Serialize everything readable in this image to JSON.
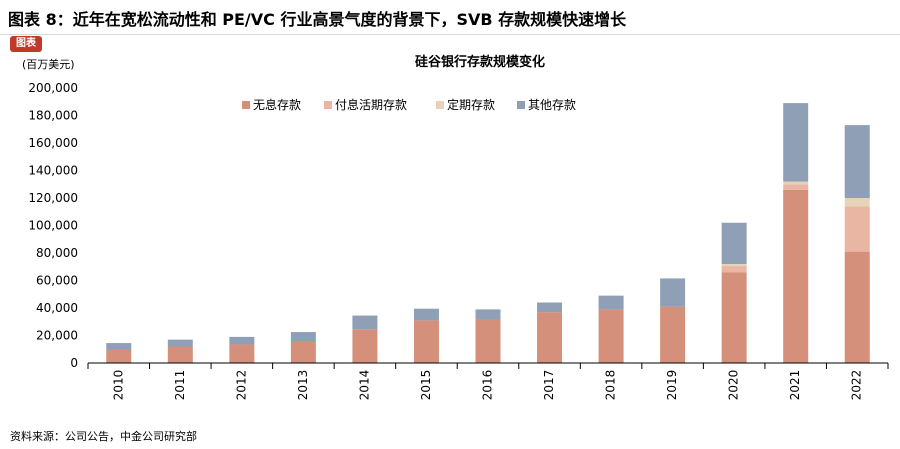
{
  "figure": {
    "title": "图表 8：近年在宽松流动性和 PE/VC 行业高景气度的背景下，SVB 存款规模快速增长",
    "source": "资料来源：公司公告，中金公司研究部"
  },
  "chart_data": {
    "type": "bar",
    "stacked": true,
    "title": "硅谷银行存款规模变化",
    "unit_label": "(百万美元)",
    "xlabel": "",
    "ylabel": "",
    "categories": [
      "2010",
      "2011",
      "2012",
      "2013",
      "2014",
      "2015",
      "2016",
      "2017",
      "2018",
      "2019",
      "2020",
      "2021",
      "2022"
    ],
    "ylim": [
      0,
      200000
    ],
    "yticks": [
      0,
      20000,
      40000,
      60000,
      80000,
      100000,
      120000,
      140000,
      160000,
      180000,
      200000
    ],
    "ytick_labels": [
      "0",
      "20,000",
      "40,000",
      "60,000",
      "80,000",
      "100,000",
      "120,000",
      "140,000",
      "160,000",
      "180,000",
      "200,000"
    ],
    "grid": false,
    "legend_position": "top",
    "series": [
      {
        "name": "无息存款",
        "color": "#d4907a",
        "values": [
          9500,
          12000,
          13500,
          16000,
          24500,
          31000,
          32000,
          37000,
          39000,
          41000,
          66000,
          126000,
          81000
        ]
      },
      {
        "name": "付息活期存款",
        "color": "#e9b6a4",
        "values": [
          0,
          0,
          0,
          0,
          0,
          0,
          0,
          0,
          0,
          0,
          4500,
          4000,
          33000
        ]
      },
      {
        "name": "定期存款",
        "color": "#e6d3b8",
        "values": [
          0,
          0,
          0,
          0,
          0,
          0,
          0,
          0,
          0,
          0,
          1500,
          2000,
          6000
        ]
      },
      {
        "name": "其他存款",
        "color": "#8e9fb6",
        "values": [
          5000,
          5000,
          5500,
          6500,
          10000,
          8500,
          7000,
          7000,
          10000,
          20500,
          30000,
          57000,
          53000
        ]
      }
    ]
  }
}
